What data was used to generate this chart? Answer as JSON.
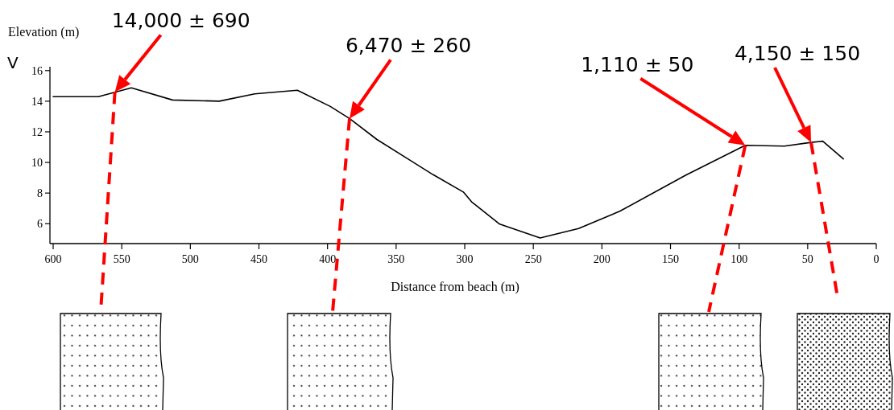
{
  "chart_data": {
    "type": "line",
    "xlabel": "Distance from beach (m)",
    "ylabel": "Elevation (m)",
    "x": [
      600,
      567,
      543,
      513,
      479,
      453,
      422,
      398,
      384,
      364,
      323,
      301,
      295,
      274.5,
      245,
      217,
      187,
      139,
      95.5,
      67,
      47.5,
      39,
      24
    ],
    "values": [
      14.3,
      14.3,
      14.87,
      14.08,
      14.0,
      14.48,
      14.72,
      13.66,
      12.87,
      11.5,
      9.2,
      8.07,
      7.43,
      5.97,
      5.07,
      5.68,
      6.81,
      9.16,
      11.12,
      11.07,
      11.31,
      11.39,
      10.23
    ],
    "color": "#000000",
    "xlim": [
      600,
      0
    ],
    "xticks": [
      600,
      550,
      500,
      450,
      400,
      350,
      300,
      250,
      200,
      150,
      100,
      50,
      0
    ],
    "ylim": [
      4.7,
      16.2
    ],
    "yticks": [
      6,
      8,
      10,
      12,
      14,
      16
    ],
    "annotations": [
      {
        "text": "14,000 ± 690",
        "x": 555,
        "y": 14.6
      },
      "6,470 ± 260",
      "1,110 ± 50",
      "4,150 ± 150",
      "V"
    ]
  }
}
